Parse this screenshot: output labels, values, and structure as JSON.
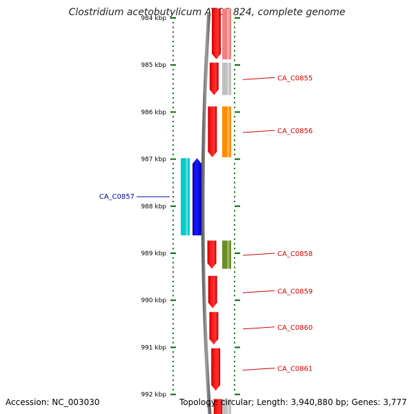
{
  "title": "Clostridium acetobutylicum ATCC 824, complete genome",
  "footer": {
    "accession": "Accession: NC_003030",
    "summary": "Topology: circular; Length: 3,940,880 bp; Genes: 3,777"
  },
  "scale": {
    "unit": "kbp",
    "major_ticks": [
      "984 kbp",
      "985 kbp",
      "986 kbp",
      "987 kbp",
      "988 kbp",
      "989 kbp",
      "990 kbp",
      "991 kbp",
      "992 kbp"
    ]
  },
  "colors": {
    "forward_cds": "#ff0000",
    "reverse_cds": "#0000ff",
    "label_forward": "#cc0000",
    "label_reverse": "#000099",
    "tick": "#006600",
    "backbone": "#808080"
  },
  "genes": [
    {
      "name": "CA_C0855",
      "strand": "+",
      "start_kbp": 984.95,
      "end_kbp": 985.64,
      "feature_color": "#c0c0c0"
    },
    {
      "name": "CA_C0856",
      "strand": "+",
      "start_kbp": 985.88,
      "end_kbp": 986.96,
      "feature_color": "#ff8c00"
    },
    {
      "name": "CA_C0857",
      "strand": "-",
      "start_kbp": 986.98,
      "end_kbp": 988.62,
      "feature_color": "#00cccc"
    },
    {
      "name": "CA_C0858",
      "strand": "+",
      "start_kbp": 988.73,
      "end_kbp": 989.33,
      "feature_color": "#6b8e23"
    },
    {
      "name": "CA_C0859",
      "strand": "+",
      "start_kbp": 989.48,
      "end_kbp": 990.17,
      "feature_color": null
    },
    {
      "name": "CA_C0860",
      "strand": "+",
      "start_kbp": 990.25,
      "end_kbp": 990.94,
      "feature_color": null
    },
    {
      "name": "CA_C0861",
      "strand": "+",
      "start_kbp": 991.02,
      "end_kbp": 991.92,
      "feature_color": null
    }
  ],
  "partial_genes": [
    {
      "strand": "+",
      "start_kbp": 983.8,
      "end_kbp": 984.88,
      "feature_color": "#f08080"
    },
    {
      "strand": "+",
      "start_kbp": 992.1,
      "end_kbp": 992.6,
      "feature_color": "#c0c0c0"
    }
  ]
}
